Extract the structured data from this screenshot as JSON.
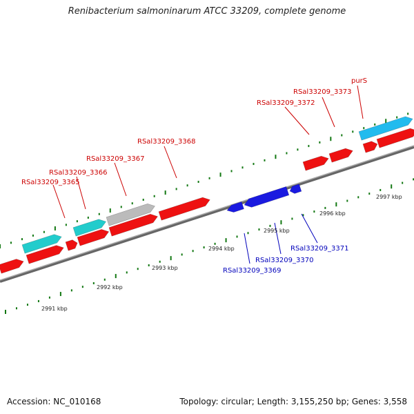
{
  "title": "Renibacterium salmoninarum ATCC 33209, complete genome",
  "footer": {
    "accession": "Accession: NC_010168",
    "summary": "Topology: circular; Length: 3,155,250 bp; Genes: 3,558"
  },
  "colors": {
    "forward_gene": "#ee1111",
    "reverse_gene": "#1a1ae0",
    "rna": "#22cccc",
    "rna_alt": "#22bbee",
    "pseudo": "#bbbbbb",
    "tick": "#117711",
    "backbone": "#888888",
    "forward_label": "#cc0000",
    "reverse_label": "#0000bb"
  },
  "scale_labels": [
    "2991 kbp",
    "2992 kbp",
    "2993 kbp",
    "2994 kbp",
    "2995 kbp",
    "2996 kbp",
    "2997 kbp"
  ],
  "forward_labels": [
    "RSal33209_3365",
    "RSal33209_3366",
    "RSal33209_3367",
    "RSal33209_3368",
    "RSal33209_3372",
    "RSal33209_3373",
    "purS"
  ],
  "reverse_labels": [
    "RSal33209_3369",
    "RSal33209_3370",
    "RSal33209_3371"
  ]
}
